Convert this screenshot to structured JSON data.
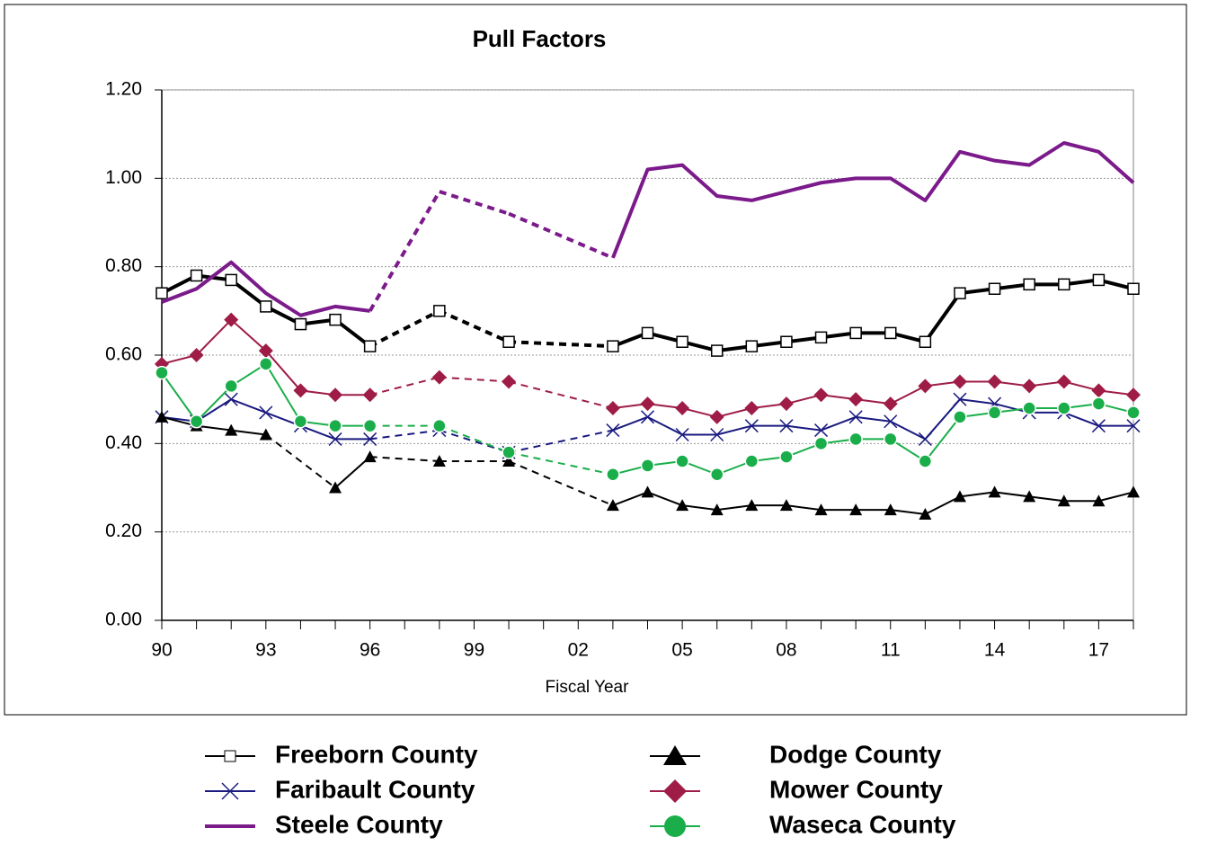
{
  "chart_data": {
    "type": "line",
    "title": "Pull Factors",
    "x_label": "Fiscal Year",
    "categories": [
      "90",
      null,
      null,
      "93",
      null,
      null,
      "96",
      null,
      null,
      "99",
      null,
      null,
      "02",
      null,
      null,
      "05",
      null,
      null,
      "08",
      null,
      null,
      "11",
      null,
      null,
      "14",
      null,
      null,
      "17",
      null
    ],
    "ylim": [
      0,
      1.2
    ],
    "yticks": [
      {
        "value": 0,
        "label": "0.00"
      },
      {
        "value": 0.2,
        "label": "0.20"
      },
      {
        "value": 0.4,
        "label": "0.40"
      },
      {
        "value": 0.6,
        "label": "0.60"
      },
      {
        "value": 0.8,
        "label": "0.80"
      },
      {
        "value": 1,
        "label": "1.00"
      },
      {
        "value": 1.2,
        "label": "1.20"
      }
    ],
    "grid": true,
    "series": [
      {
        "name": "Freeborn County",
        "color": "#000000",
        "marker": "square",
        "values": [
          0.74,
          0.78,
          0.77,
          0.71,
          0.67,
          0.68,
          0.62,
          null,
          0.7,
          null,
          0.63,
          null,
          null,
          0.62,
          0.65,
          0.63,
          0.61,
          0.62,
          0.63,
          0.64,
          0.65,
          0.65,
          0.63,
          0.74,
          0.75,
          0.76,
          0.76,
          0.77,
          0.75
        ]
      },
      {
        "name": "Faribault County",
        "color": "#1a1a80",
        "marker": "x",
        "values": [
          0.46,
          0.45,
          0.5,
          0.47,
          0.44,
          0.41,
          0.41,
          null,
          0.43,
          null,
          0.38,
          null,
          null,
          0.43,
          0.46,
          0.42,
          0.42,
          0.44,
          0.44,
          0.43,
          0.46,
          0.45,
          0.41,
          0.5,
          0.49,
          0.47,
          0.47,
          0.44,
          0.44
        ]
      },
      {
        "name": "Steele County",
        "color": "#7b1a8a",
        "marker": "none",
        "values": [
          0.72,
          0.75,
          0.81,
          0.74,
          0.69,
          0.71,
          0.7,
          null,
          0.97,
          null,
          0.92,
          null,
          null,
          0.82,
          1.02,
          1.03,
          0.96,
          0.95,
          0.97,
          0.99,
          1.0,
          1.0,
          0.95,
          1.06,
          1.04,
          1.03,
          1.08,
          1.06,
          0.99
        ]
      },
      {
        "name": "Dodge County",
        "color": "#000000",
        "marker": "triangle",
        "values": [
          0.46,
          0.44,
          0.43,
          0.42,
          null,
          0.3,
          0.37,
          null,
          0.36,
          null,
          0.36,
          null,
          null,
          0.26,
          0.29,
          0.26,
          0.25,
          0.26,
          0.26,
          0.25,
          0.25,
          0.25,
          0.24,
          0.28,
          0.29,
          0.28,
          0.27,
          0.27,
          0.29
        ]
      },
      {
        "name": "Mower County",
        "color": "#9e1c46",
        "marker": "diamond",
        "values": [
          0.58,
          0.6,
          0.68,
          0.61,
          0.52,
          0.51,
          0.51,
          null,
          0.55,
          null,
          0.54,
          null,
          null,
          0.48,
          0.49,
          0.48,
          0.46,
          0.48,
          0.49,
          0.51,
          0.5,
          0.49,
          0.53,
          0.54,
          0.54,
          0.53,
          0.54,
          0.52,
          0.51
        ]
      },
      {
        "name": "Waseca County",
        "color": "#1aae4a",
        "marker": "circle",
        "values": [
          0.56,
          0.45,
          0.53,
          0.58,
          0.45,
          0.44,
          0.44,
          null,
          0.44,
          null,
          0.38,
          null,
          null,
          0.33,
          0.35,
          0.36,
          0.33,
          0.36,
          0.37,
          0.4,
          0.41,
          0.41,
          0.36,
          0.46,
          0.47,
          0.48,
          0.48,
          0.49,
          0.47
        ]
      }
    ]
  }
}
